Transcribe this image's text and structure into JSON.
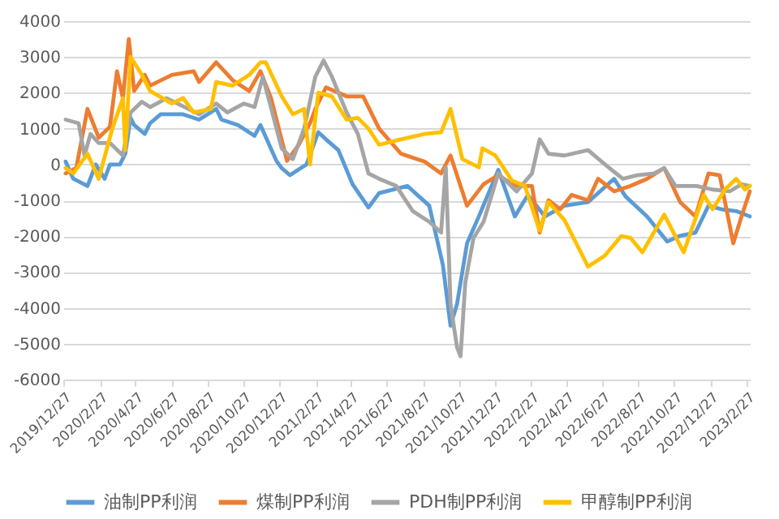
{
  "chart_data": {
    "type": "line",
    "ylim": [
      -6000,
      4000
    ],
    "yticks": [
      -6000,
      -5000,
      -4000,
      -3000,
      -2000,
      -1000,
      0,
      1000,
      2000,
      3000,
      4000
    ],
    "xlim": [
      "2019-12-27",
      "2023-03-04"
    ],
    "xticks": [
      {
        "value": "2019-12-27",
        "label": "2019/12/27"
      },
      {
        "value": "2020-02-27",
        "label": "2020/2/27"
      },
      {
        "value": "2020-04-27",
        "label": "2020/4/27"
      },
      {
        "value": "2020-06-27",
        "label": "2020/6/27"
      },
      {
        "value": "2020-08-27",
        "label": "2020/8/27"
      },
      {
        "value": "2020-10-27",
        "label": "2020/10/27"
      },
      {
        "value": "2020-12-27",
        "label": "2020/12/27"
      },
      {
        "value": "2021-02-27",
        "label": "2021/2/27"
      },
      {
        "value": "2021-04-27",
        "label": "2021/4/27"
      },
      {
        "value": "2021-06-27",
        "label": "2021/6/27"
      },
      {
        "value": "2021-08-27",
        "label": "2021/8/27"
      },
      {
        "value": "2021-10-27",
        "label": "2021/10/27"
      },
      {
        "value": "2021-12-27",
        "label": "2021/12/27"
      },
      {
        "value": "2022-02-27",
        "label": "2022/2/27"
      },
      {
        "value": "2022-04-27",
        "label": "2022/4/27"
      },
      {
        "value": "2022-06-27",
        "label": "2022/6/27"
      },
      {
        "value": "2022-08-27",
        "label": "2022/8/27"
      },
      {
        "value": "2022-10-27",
        "label": "2022/10/27"
      },
      {
        "value": "2022-12-27",
        "label": "2022/12/27"
      },
      {
        "value": "2023-02-27",
        "label": "2023/2/27"
      }
    ],
    "grid": "y",
    "legend": "bottom",
    "line_style": "solid",
    "series": [
      {
        "name": "油制PP利润",
        "color": "#5b9bd5",
        "x": [
          "2019-12-31",
          "2020-01-13",
          "2020-02-06",
          "2020-02-20",
          "2020-03-06",
          "2020-03-15",
          "2020-04-01",
          "2020-04-10",
          "2020-04-19",
          "2020-04-25",
          "2020-05-13",
          "2020-05-22",
          "2020-06-09",
          "2020-07-17",
          "2020-08-13",
          "2020-09-11",
          "2020-09-20",
          "2020-10-18",
          "2020-11-15",
          "2020-11-25",
          "2020-12-22",
          "2020-12-31",
          "2021-01-14",
          "2021-02-11",
          "2021-03-03",
          "2021-03-16",
          "2021-04-06",
          "2021-04-30",
          "2021-05-27",
          "2021-06-14",
          "2021-08-01",
          "2021-09-07",
          "2021-09-30",
          "2021-10-13",
          "2021-10-24",
          "2021-11-10",
          "2021-11-30",
          "2022-01-02",
          "2022-01-30",
          "2022-02-21",
          "2022-03-22",
          "2022-04-24",
          "2022-06-03",
          "2022-07-17",
          "2022-08-06",
          "2022-09-11",
          "2022-10-15",
          "2022-11-04",
          "2022-12-02",
          "2022-12-24",
          "2023-01-15",
          "2023-02-09",
          "2023-03-04"
        ],
        "values": [
          80,
          -400,
          -600,
          0,
          -400,
          0,
          0,
          300,
          1300,
          1100,
          850,
          1150,
          1400,
          1400,
          1250,
          1550,
          1250,
          1100,
          800,
          1100,
          100,
          -100,
          -300,
          0,
          900,
          700,
          400,
          -550,
          -1200,
          -800,
          -600,
          -1150,
          -2800,
          -4500,
          -3900,
          -2200,
          -1450,
          -150,
          -1450,
          -850,
          -1450,
          -1150,
          -1050,
          -400,
          -900,
          -1450,
          -2150,
          -2000,
          -1900,
          -1150,
          -1250,
          -1300,
          -1450
        ]
      },
      {
        "name": "煤制PP利润",
        "color": "#ed7d31",
        "x": [
          "2019-12-31",
          "2020-01-18",
          "2020-02-06",
          "2020-02-25",
          "2020-03-15",
          "2020-03-27",
          "2020-04-06",
          "2020-04-16",
          "2020-04-25",
          "2020-05-13",
          "2020-05-22",
          "2020-06-28",
          "2020-08-04",
          "2020-08-13",
          "2020-09-11",
          "2020-10-09",
          "2020-11-06",
          "2020-11-25",
          "2020-12-13",
          "2021-01-09",
          "2021-01-29",
          "2021-02-17",
          "2021-02-26",
          "2021-03-16",
          "2021-04-20",
          "2021-05-18",
          "2021-06-14",
          "2021-07-21",
          "2021-08-30",
          "2021-09-27",
          "2021-10-13",
          "2021-11-10",
          "2021-12-08",
          "2022-01-02",
          "2022-01-30",
          "2022-02-28",
          "2022-03-13",
          "2022-03-28",
          "2022-04-17",
          "2022-05-06",
          "2022-06-03",
          "2022-06-20",
          "2022-07-17",
          "2022-08-14",
          "2022-09-11",
          "2022-10-10",
          "2022-11-06",
          "2022-12-02",
          "2022-12-24",
          "2023-01-12",
          "2023-02-04",
          "2023-02-18",
          "2023-03-04"
        ],
        "values": [
          -250,
          -100,
          1550,
          750,
          1050,
          2600,
          1850,
          3500,
          2050,
          2500,
          2200,
          2500,
          2600,
          2300,
          2850,
          2350,
          2050,
          2600,
          1850,
          100,
          550,
          1150,
          1550,
          2150,
          1900,
          1900,
          1000,
          300,
          80,
          -250,
          250,
          -1150,
          -550,
          -300,
          -600,
          -600,
          -1900,
          -1000,
          -1250,
          -850,
          -1000,
          -400,
          -750,
          -600,
          -400,
          -100,
          -1050,
          -1450,
          -250,
          -300,
          -2200,
          -1450,
          -750
        ]
      },
      {
        "name": "PDH制PP利润",
        "color": "#a5a5a5",
        "x": [
          "2019-12-31",
          "2020-01-22",
          "2020-02-01",
          "2020-02-11",
          "2020-02-25",
          "2020-03-15",
          "2020-04-06",
          "2020-04-19",
          "2020-05-08",
          "2020-05-22",
          "2020-06-19",
          "2020-07-26",
          "2020-08-13",
          "2020-09-11",
          "2020-09-30",
          "2020-10-28",
          "2020-11-15",
          "2020-11-29",
          "2020-12-31",
          "2021-01-19",
          "2021-02-07",
          "2021-02-26",
          "2021-03-12",
          "2021-03-26",
          "2021-04-20",
          "2021-05-09",
          "2021-05-27",
          "2021-06-14",
          "2021-07-13",
          "2021-08-10",
          "2021-09-07",
          "2021-09-27",
          "2021-10-05",
          "2021-10-13",
          "2021-10-24",
          "2021-10-30",
          "2021-11-07",
          "2021-11-21",
          "2021-12-08",
          "2022-01-02",
          "2022-02-02",
          "2022-02-28",
          "2022-03-13",
          "2022-03-28",
          "2022-04-24",
          "2022-06-03",
          "2022-07-09",
          "2022-08-01",
          "2022-08-25",
          "2022-09-23",
          "2022-10-10",
          "2022-10-29",
          "2022-12-04",
          "2022-12-31",
          "2023-01-29",
          "2023-02-18",
          "2023-03-04"
        ],
        "values": [
          1250,
          1150,
          250,
          850,
          600,
          600,
          250,
          1450,
          1750,
          1600,
          1850,
          1550,
          1400,
          1700,
          1450,
          1700,
          1600,
          2450,
          450,
          150,
          1000,
          2450,
          2900,
          2450,
          1450,
          850,
          -250,
          -400,
          -600,
          -1300,
          -1600,
          -1900,
          -80,
          -3900,
          -5100,
          -5350,
          -3300,
          -2050,
          -1600,
          -250,
          -750,
          -250,
          700,
          300,
          250,
          400,
          -100,
          -400,
          -300,
          -250,
          -100,
          -600,
          -600,
          -700,
          -750,
          -550,
          -600
        ]
      },
      {
        "name": "甲醇制PP利润",
        "color": "#ffc000",
        "x": [
          "2019-12-31",
          "2020-01-13",
          "2020-02-06",
          "2020-02-25",
          "2020-03-19",
          "2020-04-06",
          "2020-04-10",
          "2020-04-19",
          "2020-05-08",
          "2020-05-22",
          "2020-06-28",
          "2020-07-17",
          "2020-08-04",
          "2020-09-02",
          "2020-09-11",
          "2020-10-09",
          "2020-11-06",
          "2020-11-25",
          "2020-12-04",
          "2020-12-31",
          "2021-01-19",
          "2021-02-07",
          "2021-02-17",
          "2021-03-03",
          "2021-03-26",
          "2021-04-20",
          "2021-05-09",
          "2021-05-27",
          "2021-06-14",
          "2021-07-21",
          "2021-08-30",
          "2021-09-27",
          "2021-10-13",
          "2021-11-02",
          "2021-11-30",
          "2021-12-06",
          "2021-12-28",
          "2022-01-25",
          "2022-02-16",
          "2022-03-13",
          "2022-03-28",
          "2022-04-24",
          "2022-06-03",
          "2022-07-01",
          "2022-07-29",
          "2022-08-14",
          "2022-09-03",
          "2022-10-10",
          "2022-11-12",
          "2022-12-16",
          "2022-12-31",
          "2023-01-21",
          "2023-02-09",
          "2023-02-24",
          "2023-03-04"
        ],
        "values": [
          -100,
          -250,
          300,
          -400,
          1000,
          1850,
          400,
          3000,
          2500,
          2050,
          1700,
          1850,
          1450,
          1550,
          2300,
          2200,
          2500,
          2850,
          2850,
          1900,
          1400,
          1550,
          0,
          2000,
          1900,
          1250,
          1300,
          1000,
          550,
          700,
          850,
          900,
          1550,
          150,
          -80,
          450,
          250,
          -450,
          -600,
          -1850,
          -1050,
          -1550,
          -2850,
          -2550,
          -2000,
          -2050,
          -2450,
          -1400,
          -2450,
          -850,
          -1250,
          -700,
          -400,
          -700,
          -600
        ]
      }
    ]
  }
}
